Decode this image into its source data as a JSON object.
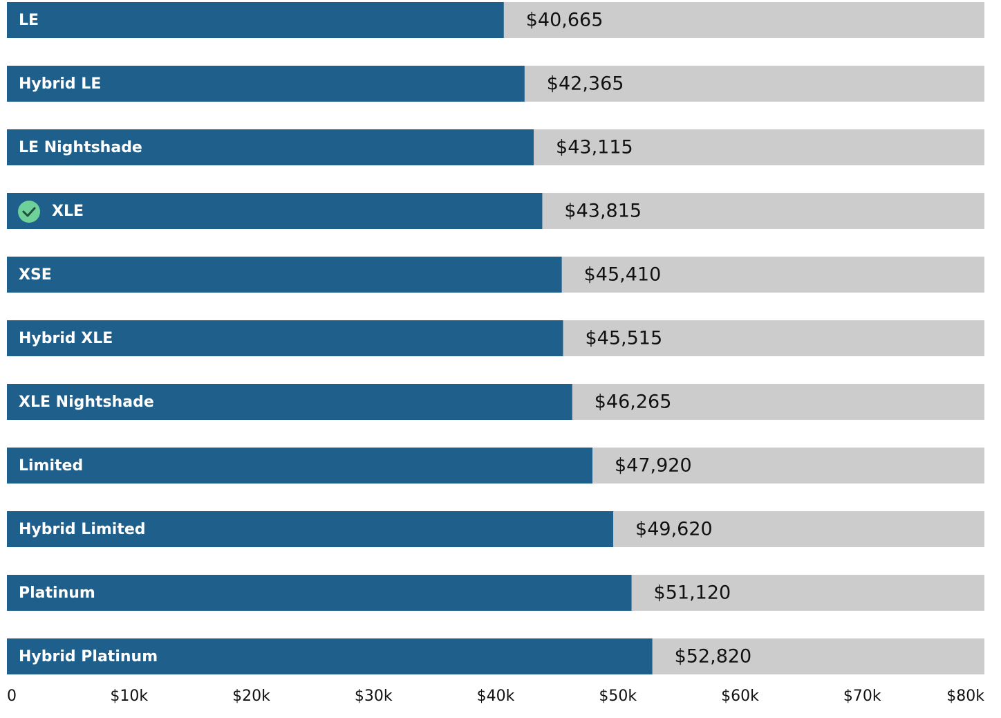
{
  "chart_data": {
    "type": "bar",
    "orientation": "horizontal",
    "categories": [
      "LE",
      "Hybrid LE",
      "LE Nightshade",
      "XLE",
      "XSE",
      "Hybrid XLE",
      "XLE Nightshade",
      "Limited",
      "Hybrid Limited",
      "Platinum",
      "Hybrid Platinum"
    ],
    "values": [
      40665,
      42365,
      43115,
      43815,
      45410,
      45515,
      46265,
      47920,
      49620,
      51120,
      52820
    ],
    "value_labels": [
      "$40,665",
      "$42,365",
      "$43,115",
      "$43,815",
      "$45,410",
      "$45,515",
      "$46,265",
      "$47,920",
      "$49,620",
      "$51,120",
      "$52,820"
    ],
    "color": "#1f5f8b",
    "track_color": "#cccccc",
    "selected_category": "XLE",
    "xlim": [
      0,
      80000
    ],
    "xticks": [
      0,
      {
        "value": 10000,
        "label": "$10k"
      },
      {
        "value": 20000,
        "label": "$20k"
      },
      {
        "value": 30000,
        "label": "$30k"
      },
      {
        "value": 40000,
        "label": "$40k"
      },
      {
        "value": 50000,
        "label": "$50k"
      },
      {
        "value": 60000,
        "label": "$60k"
      },
      {
        "value": 70000,
        "label": "$70k"
      },
      {
        "value": 80000,
        "label": "$80k"
      }
    ]
  }
}
